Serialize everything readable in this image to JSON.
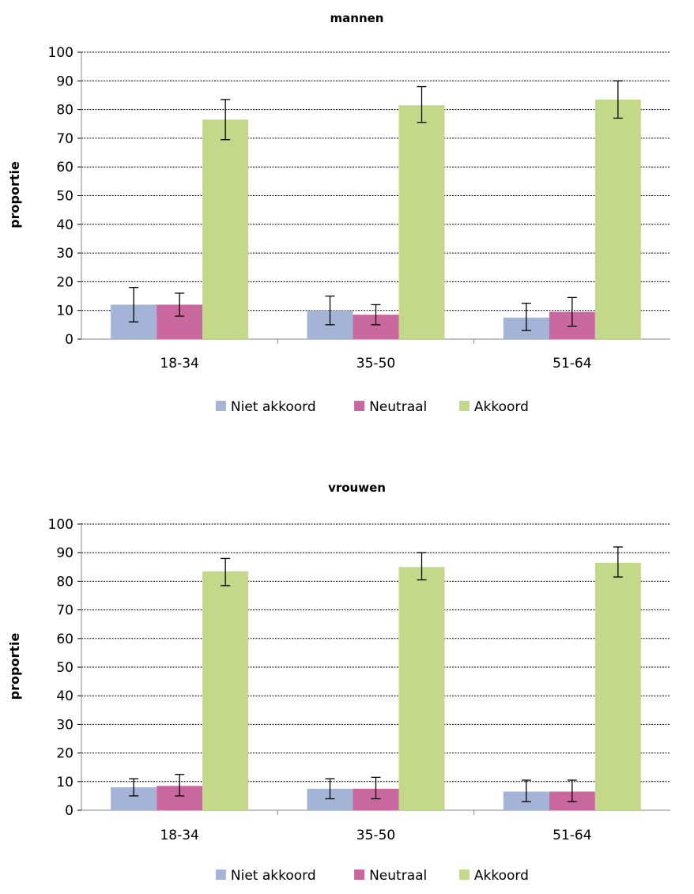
{
  "chart_data": [
    {
      "type": "bar",
      "title": "mannen",
      "ylabel": "proportie",
      "xlabel": "",
      "categories": [
        "18-34",
        "35-50",
        "51-64"
      ],
      "ylim": [
        0,
        100
      ],
      "yticks": [
        0,
        10,
        20,
        30,
        40,
        50,
        60,
        70,
        80,
        90,
        100
      ],
      "grid": "dashed-horizontal",
      "legend_position": "bottom",
      "series": [
        {
          "name": "Niet akkoord",
          "color": "#A3B4D6",
          "values": [
            12,
            10,
            7.5
          ],
          "error_low": [
            6,
            5,
            3
          ],
          "error_high": [
            18,
            15,
            12.5
          ]
        },
        {
          "name": "Neutraal",
          "color": "#C9679F",
          "values": [
            12,
            8.5,
            9.5
          ],
          "error_low": [
            8,
            5,
            4.5
          ],
          "error_high": [
            16,
            12,
            14.5
          ]
        },
        {
          "name": "Akkoord",
          "color": "#C4D88A",
          "values": [
            76.5,
            81.5,
            83.5
          ],
          "error_low": [
            69.5,
            75.5,
            77
          ],
          "error_high": [
            83.5,
            88,
            90
          ]
        }
      ]
    },
    {
      "type": "bar",
      "title": "vrouwen",
      "ylabel": "proportie",
      "xlabel": "",
      "categories": [
        "18-34",
        "35-50",
        "51-64"
      ],
      "ylim": [
        0,
        100
      ],
      "yticks": [
        0,
        10,
        20,
        30,
        40,
        50,
        60,
        70,
        80,
        90,
        100
      ],
      "grid": "dashed-horizontal",
      "legend_position": "bottom",
      "series": [
        {
          "name": "Niet akkoord",
          "color": "#A3B4D6",
          "values": [
            8,
            7.5,
            6.5
          ],
          "error_low": [
            5,
            4,
            3
          ],
          "error_high": [
            11,
            11,
            10.5
          ]
        },
        {
          "name": "Neutraal",
          "color": "#C9679F",
          "values": [
            8.5,
            7.5,
            6.5
          ],
          "error_low": [
            5,
            4,
            3
          ],
          "error_high": [
            12.5,
            11.5,
            10.5
          ]
        },
        {
          "name": "Akkoord",
          "color": "#C4D88A",
          "values": [
            83.5,
            85,
            86.5
          ],
          "error_low": [
            78.5,
            80.5,
            81.5
          ],
          "error_high": [
            88,
            90,
            92
          ]
        }
      ]
    }
  ]
}
